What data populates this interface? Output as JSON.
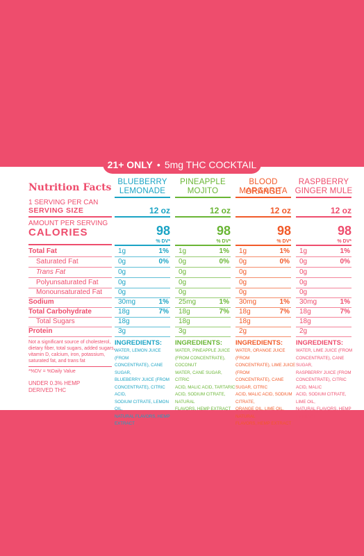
{
  "banner": {
    "bold": "21+ ONLY",
    "sep": "•",
    "rest": "5mg THC COCKTAIL"
  },
  "title": "Nutrition Facts",
  "labels": {
    "per_can": "1 SERVING PER CAN",
    "serving_size": "SERVING SIZE",
    "amount_per": "AMOUNT PER SERVING",
    "calories": "CALORIES",
    "total_fat": "Total Fat",
    "sat_fat": "Saturated Fat",
    "trans_fat": "Trans Fat",
    "poly_fat": "Polyunsaturated Fat",
    "mono_fat": "Monounsaturated Fat",
    "sodium": "Sodium",
    "carb": "Total Carbohydrate",
    "sugars": "Total Sugars",
    "protein": "Protein"
  },
  "columns": [
    {
      "name1": "BLUEBERRY",
      "name2": "LEMONADE",
      "color": "#1aa3c4",
      "serving": "12 oz",
      "calories": "98",
      "dv": "% DV*",
      "fat": "1g",
      "fat_dv": "1%",
      "sat": "0g",
      "sat_dv": "0%",
      "trans": "0g",
      "poly": "0g",
      "mono": "0g",
      "sodium": "30mg",
      "sodium_dv": "1%",
      "carb": "18g",
      "carb_dv": "7%",
      "sugars": "18g",
      "protein": "3g",
      "ing_title": "INGREDIENTS:",
      "ing": [
        "WATER, LEMON JUICE (FROM",
        "CONCENTRATE), CANE SUGAR,",
        "BLUEBERRY JUICE (FROM",
        "CONCENTRATE), CITRIC ACID,",
        "SODIUM CITRATE, LEMON OIL,",
        "NATURAL FLAVORS, HEMP EXTRACT"
      ]
    },
    {
      "name1": "PINEAPPLE",
      "name2": "MOJITO",
      "color": "#69b534",
      "serving": "12 oz",
      "calories": "98",
      "dv": "% DV*",
      "fat": "1g",
      "fat_dv": "1%",
      "sat": "0g",
      "sat_dv": "0%",
      "trans": "0g",
      "poly": "0g",
      "mono": "0g",
      "sodium": "25mg",
      "sodium_dv": "1%",
      "carb": "18g",
      "carb_dv": "7%",
      "sugars": "18g",
      "protein": "3g",
      "ing_title": "INGREDIENTS:",
      "ing": [
        "WATER, PINEAPPLE JUICE",
        "(FROM CONCENTRATE), COCONUT",
        "WATER, CANE SUGAR, CITRIC",
        "ACID, MALIC ACID, TARTARIC",
        "ACID, SODIUM CITRATE, NATURAL",
        "FLAVORS, HEMP EXTRACT"
      ]
    },
    {
      "name1": "BLOOD ORANGE",
      "name2": "MARGARITA",
      "color": "#f15a29",
      "serving": "12 oz",
      "calories": "98",
      "dv": "% DV*",
      "fat": "1g",
      "fat_dv": "1%",
      "sat": "0g",
      "sat_dv": "0%",
      "trans": "0g",
      "poly": "0g",
      "mono": "0g",
      "sodium": "30mg",
      "sodium_dv": "1%",
      "carb": "18g",
      "carb_dv": "7%",
      "sugars": "18g",
      "protein": "2g",
      "ing_title": "INGREDIENTS:",
      "ing": [
        "WATER, ORANGE JUICE (FROM",
        "CONCENTRATE), LIME JUICE (FROM",
        "CONCENTRATE), CANE SUGAR, CITRIC",
        "ACID, MALIC ACID, SODIUM CITRATE,",
        "ORANGE OIL, LIME OIL, NATURAL",
        "FLAVORS, HEMP EXTRACT"
      ]
    },
    {
      "name1": "RASPBERRY",
      "name2": "GINGER MULE",
      "color": "#ee4d6d",
      "serving": "12 oz",
      "calories": "98",
      "dv": "% DV*",
      "fat": "1g",
      "fat_dv": "1%",
      "sat": "0g",
      "sat_dv": "0%",
      "trans": "0g",
      "poly": "0g",
      "mono": "0g",
      "sodium": "30mg",
      "sodium_dv": "1%",
      "carb": "18g",
      "carb_dv": "7%",
      "sugars": "18g",
      "protein": "2g",
      "ing_title": "INGREDIENTS:",
      "ing": [
        "WATER, LIME JUICE (FROM",
        "CONCENTRATE), CANE SUGAR,",
        "RASPBERRY JUICE (FROM",
        "CONCENTRATE), CITRIC ACID, MALIC",
        "ACID, SODIUM CITRATE, LIME OIL,",
        "NATURAL FLAVORS, HEMP EXTRACT"
      ]
    }
  ],
  "footnote": [
    "Not a significant source of cholesterol,",
    "dietary fiber, total sugars, added sugars,",
    "vitamin D, calcium, iron, potassium,",
    "saturated fat, and trans fat"
  ],
  "dv_note": "*%DV = %Daily Value",
  "hemp1": "UNDER 0.3% HEMP",
  "hemp2": "DERIVED THC"
}
